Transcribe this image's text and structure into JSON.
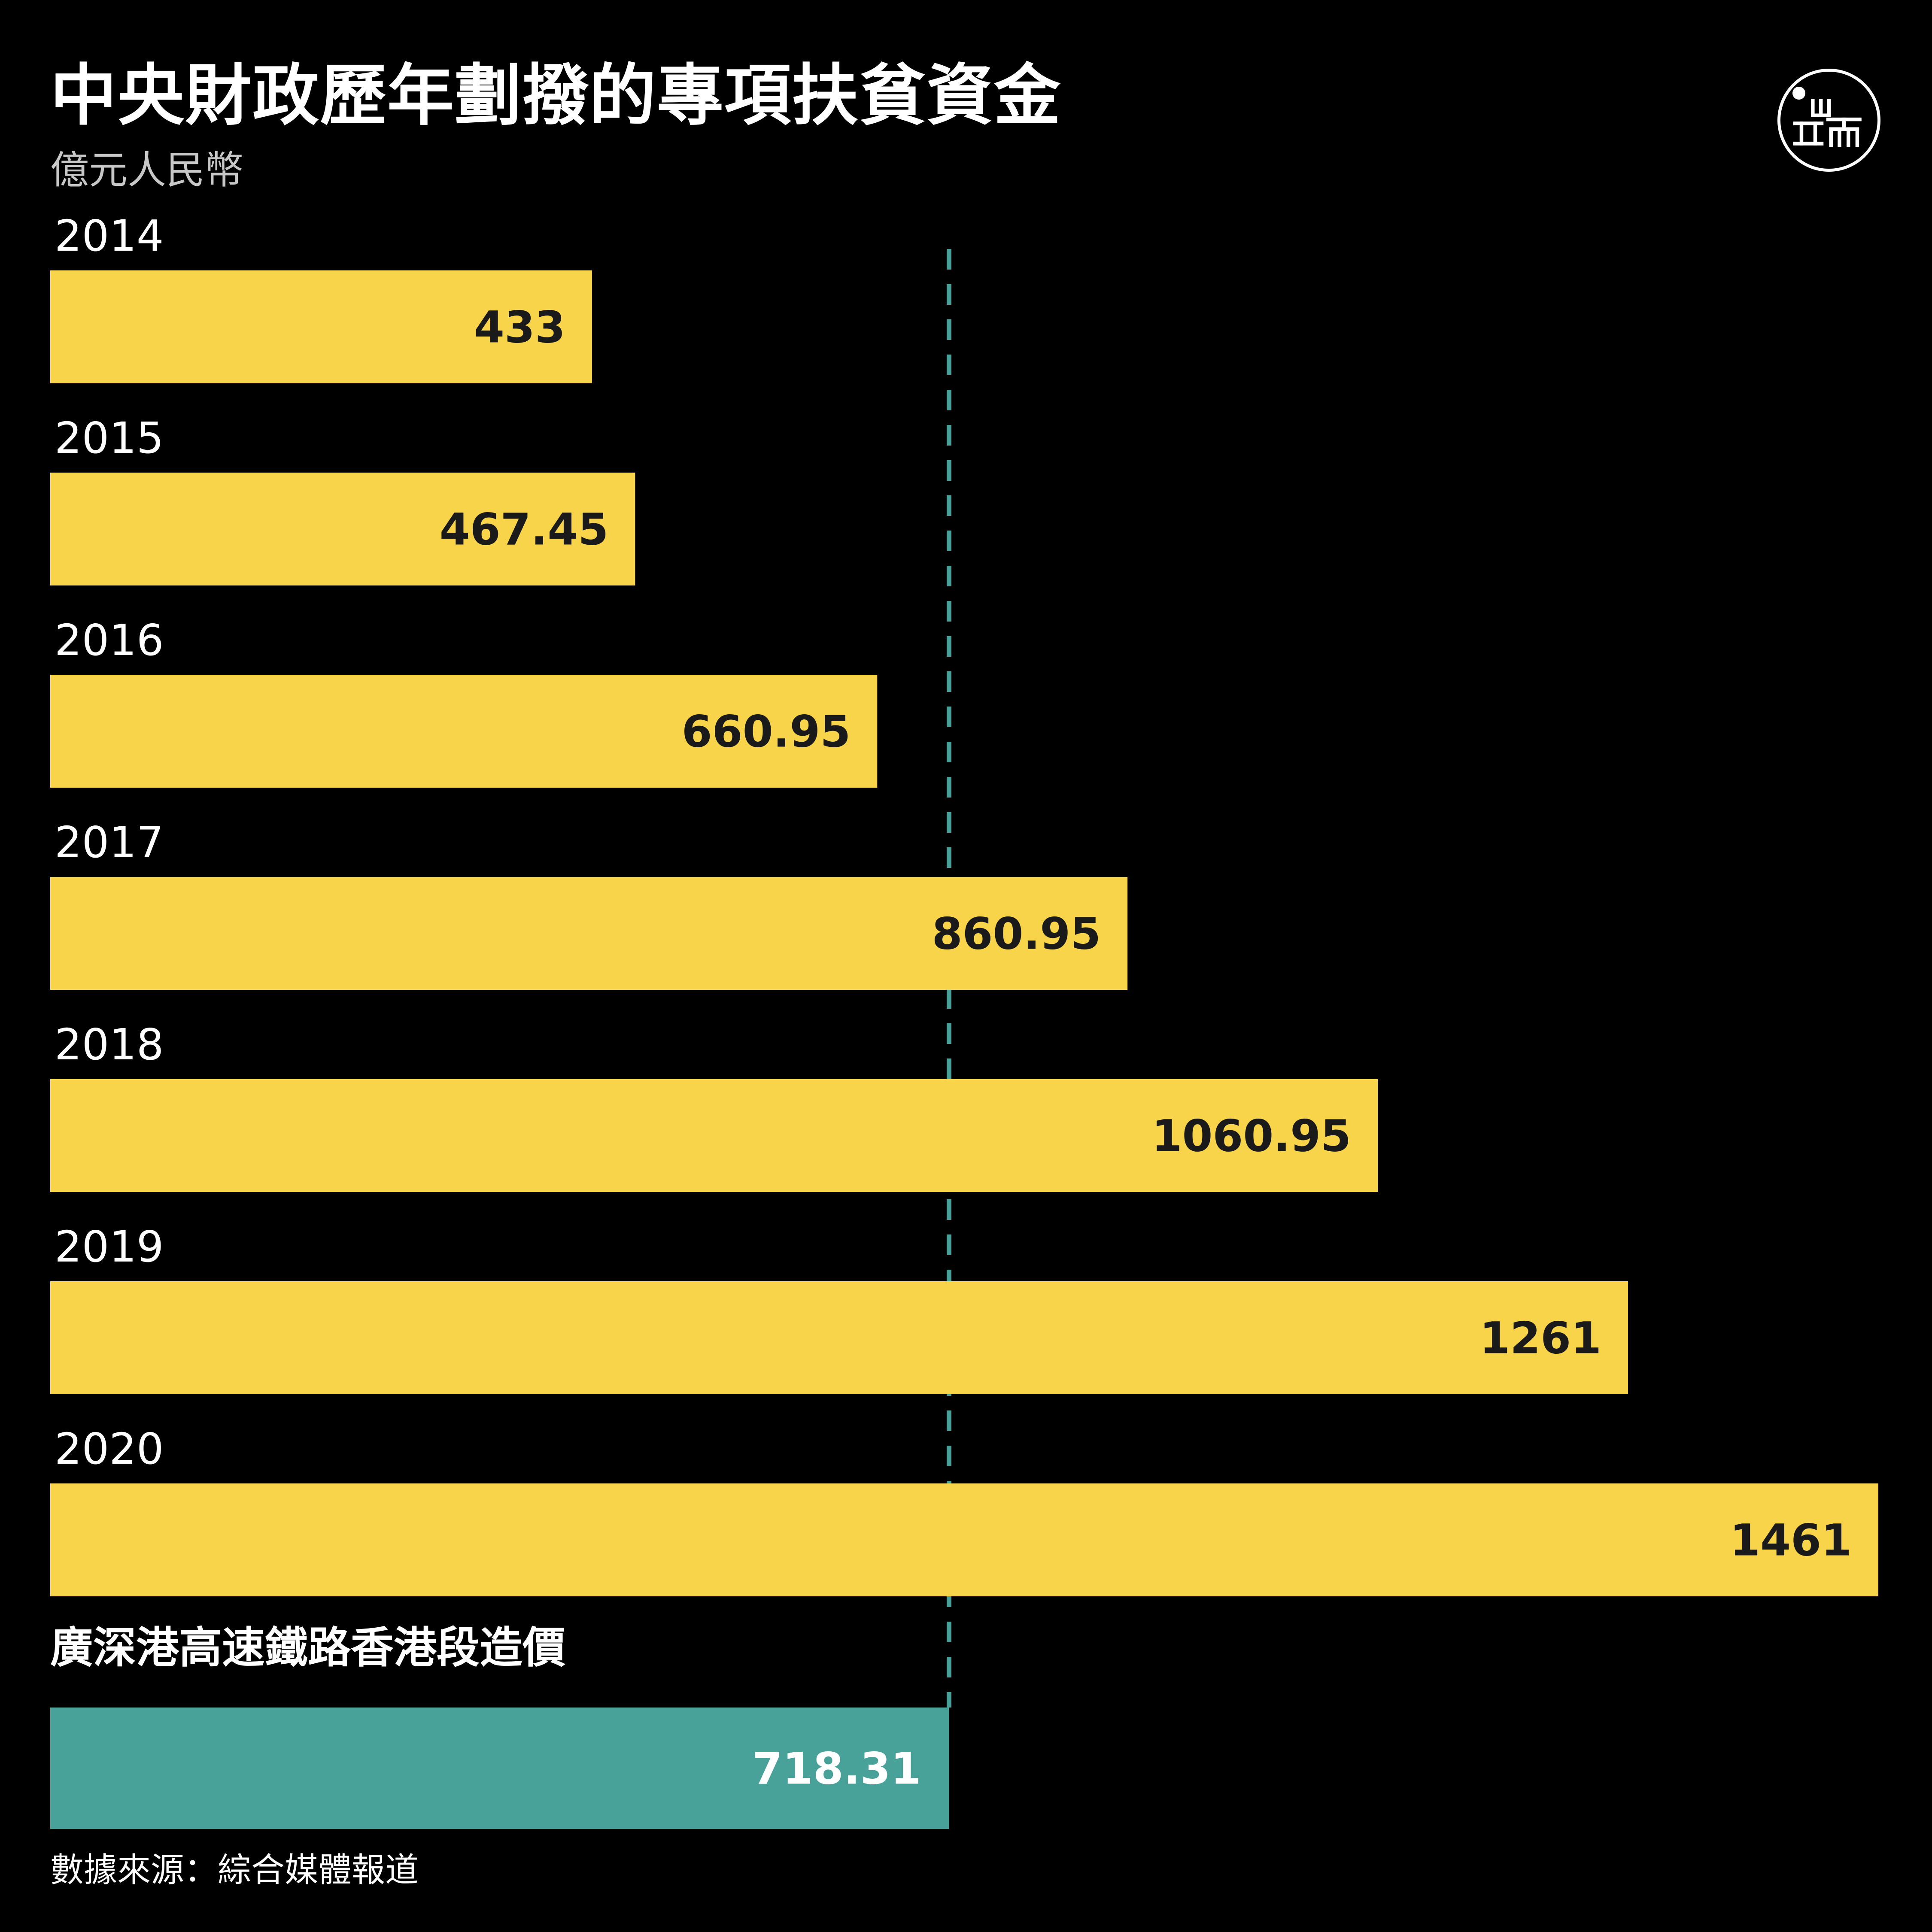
{
  "header": {
    "title": "中央財政歷年劃撥的專項扶貧資金",
    "unit": "億元人民幣"
  },
  "logo": {
    "icon": "initium-logo-icon"
  },
  "colors": {
    "background": "#000000",
    "bar": "#F7D44A",
    "reference_bar": "#48A29A",
    "reference_line": "#48A29A",
    "bar_text": "#1A1A1A",
    "reference_text": "#FFFFFF"
  },
  "chart_data": {
    "type": "bar",
    "orientation": "horizontal",
    "title": "中央財政歷年劃撥的專項扶貧資金",
    "unit": "億元人民幣",
    "categories": [
      "2014",
      "2015",
      "2016",
      "2017",
      "2018",
      "2019",
      "2020"
    ],
    "values": [
      433,
      467.45,
      660.95,
      860.95,
      1060.95,
      1261,
      1461
    ],
    "value_labels": [
      "433",
      "467.45",
      "660.95",
      "860.95",
      "1060.95",
      "1261",
      "1461"
    ],
    "xlim": [
      0,
      1461
    ],
    "grid": false,
    "reference": {
      "label": "廣深港高速鐵路香港段造價",
      "value": 718.31,
      "value_label": "718.31"
    }
  },
  "footer": {
    "source": "數據來源：綜合媒體報道"
  }
}
